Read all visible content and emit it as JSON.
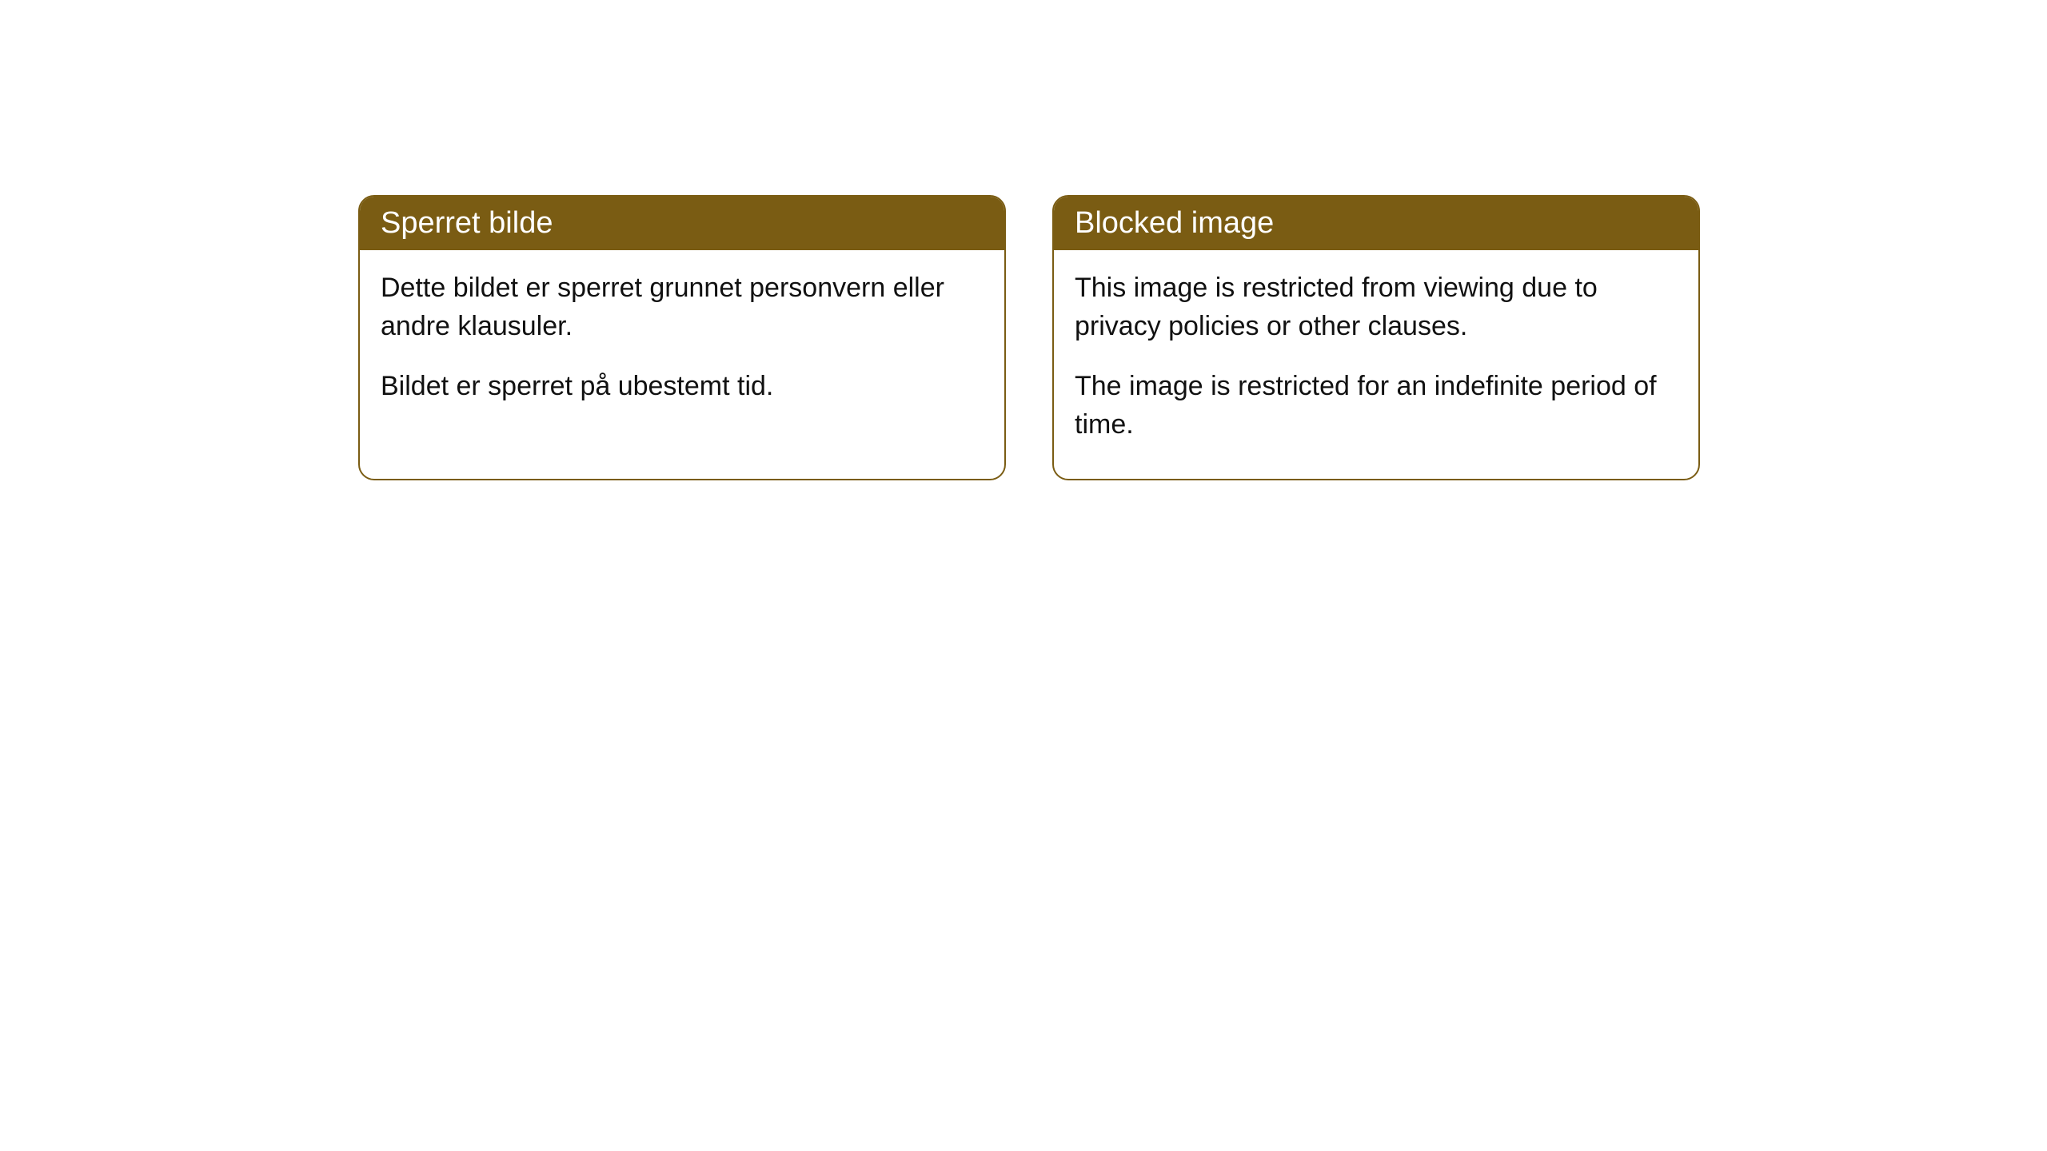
{
  "cards": [
    {
      "title": "Sperret bilde",
      "paragraph1": "Dette bildet er sperret grunnet personvern eller andre klausuler.",
      "paragraph2": "Bildet er sperret på ubestemt tid."
    },
    {
      "title": "Blocked image",
      "paragraph1": "This image is restricted from viewing due to privacy policies or other clauses.",
      "paragraph2": "The image is restricted for an indefinite period of time."
    }
  ],
  "styling": {
    "header_bg_color": "#7a5c13",
    "header_text_color": "#ffffff",
    "border_color": "#7a5c13",
    "body_text_color": "#111111",
    "card_bg_color": "#ffffff",
    "page_bg_color": "#ffffff",
    "border_radius": 20,
    "title_fontsize": 38,
    "body_fontsize": 34
  }
}
